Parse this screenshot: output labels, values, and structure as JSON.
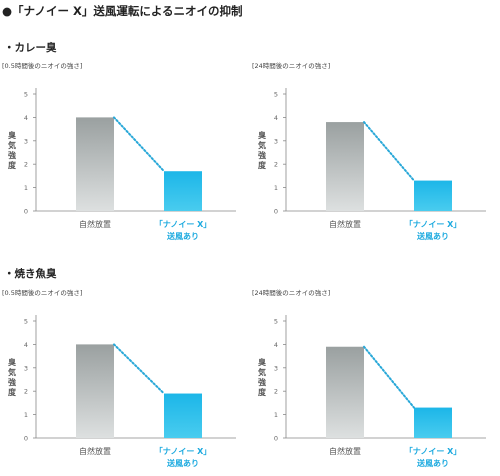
{
  "page": {
    "title": "●「ナノイー X」送風運転によるニオイの抑制"
  },
  "sections": [
    {
      "title": "・カレー臭"
    },
    {
      "title": "・焼き魚臭"
    }
  ],
  "colors": {
    "natural_bar_top": "#9aa0a0",
    "natural_bar_bottom": "#dde0e0",
    "nanoe_bar_top": "#1cb6e8",
    "nanoe_bar_bottom": "#49ccef",
    "dotted_line": "#29a8d8",
    "nanoe_label": "#1aa9df",
    "axis": "#888888"
  },
  "chart_data": [
    {
      "type": "bar",
      "section": "・カレー臭",
      "caption": "[0.5時間後のニオイの強さ]",
      "ylabel": "臭気強度",
      "ylim": [
        0,
        5
      ],
      "yticks": [
        "0",
        "1",
        "2",
        "3",
        "4",
        "5"
      ],
      "categories": [
        "自然放置",
        "「ナノイー X」送風あり"
      ],
      "category_lines": [
        [
          "自然放置"
        ],
        [
          "「ナノイー X」",
          "送風あり"
        ]
      ],
      "values": [
        4.0,
        1.7
      ]
    },
    {
      "type": "bar",
      "section": "・カレー臭",
      "caption": "[24時間後のニオイの強さ]",
      "ylabel": "臭気強度",
      "ylim": [
        0,
        5
      ],
      "yticks": [
        "0",
        "1",
        "2",
        "3",
        "4",
        "5"
      ],
      "categories": [
        "自然放置",
        "「ナノイー X」送風あり"
      ],
      "category_lines": [
        [
          "自然放置"
        ],
        [
          "「ナノイー X」",
          "送風あり"
        ]
      ],
      "values": [
        3.8,
        1.3
      ]
    },
    {
      "type": "bar",
      "section": "・焼き魚臭",
      "caption": "[0.5時間後のニオイの強さ]",
      "ylabel": "臭気強度",
      "ylim": [
        0,
        5
      ],
      "yticks": [
        "0",
        "1",
        "2",
        "3",
        "4",
        "5"
      ],
      "categories": [
        "自然放置",
        "「ナノイー X」送風あり"
      ],
      "category_lines": [
        [
          "自然放置"
        ],
        [
          "「ナノイー X」",
          "送風あり"
        ]
      ],
      "values": [
        4.0,
        1.9
      ]
    },
    {
      "type": "bar",
      "section": "・焼き魚臭",
      "caption": "[24時間後のニオイの強さ]",
      "ylabel": "臭気強度",
      "ylim": [
        0,
        5
      ],
      "yticks": [
        "0",
        "1",
        "2",
        "3",
        "4",
        "5"
      ],
      "categories": [
        "自然放置",
        "「ナノイー X」送風あり"
      ],
      "category_lines": [
        [
          "自然放置"
        ],
        [
          "「ナノイー X」",
          "送風あり"
        ]
      ],
      "values": [
        3.9,
        1.3
      ]
    }
  ]
}
